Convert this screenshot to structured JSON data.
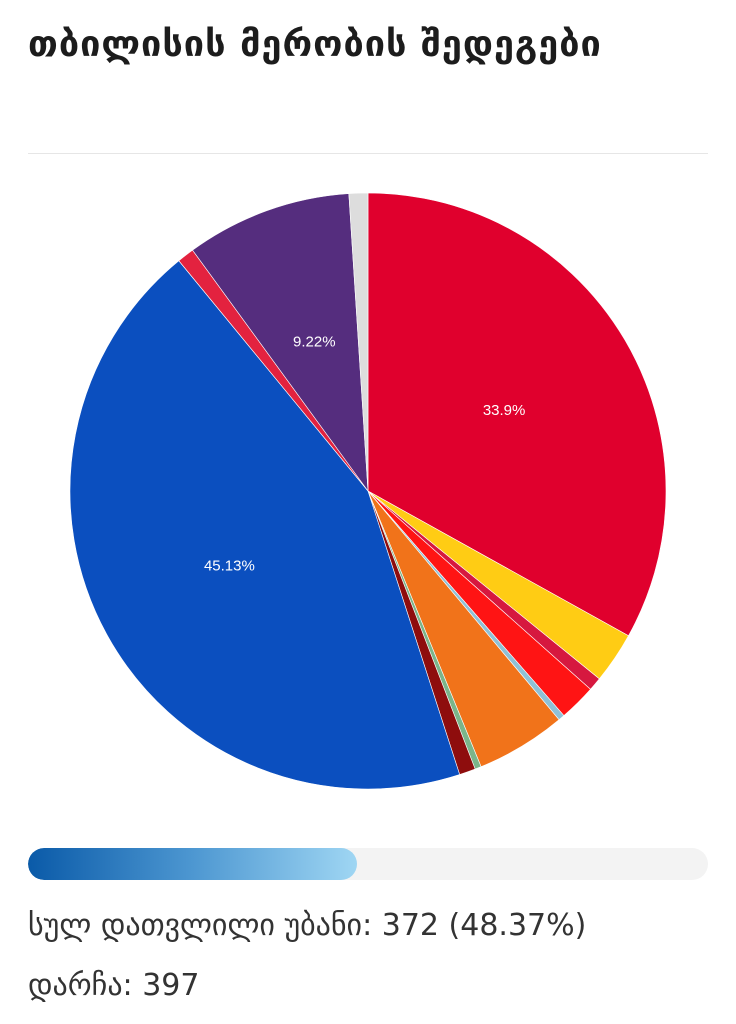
{
  "title": "თბილისის მერობის შედეგები",
  "chart_data": {
    "type": "pie",
    "values": [
      33.9,
      2.85,
      0.75,
      2.05,
      0.35,
      5.0,
      0.35,
      0.9,
      45.13,
      0.95,
      9.22,
      1.05
    ],
    "colors": [
      "#e0002d",
      "#ffcc14",
      "#d6183f",
      "#ff1414",
      "#8fc1d6",
      "#f1731a",
      "#7bb58a",
      "#8e0d0d",
      "#0b4fbf",
      "#e3223f",
      "#552d7e",
      "#dddddd"
    ],
    "labels": [
      "33.9%",
      "",
      "",
      "",
      "",
      "",
      "",
      "",
      "45.13%",
      "",
      "9.22%",
      ""
    ]
  },
  "progress": {
    "value": 48.37
  },
  "stats": {
    "counted": "სულ დათვლილი უბანი: 372 (48.37%)",
    "remaining": "დარჩა: 397"
  }
}
